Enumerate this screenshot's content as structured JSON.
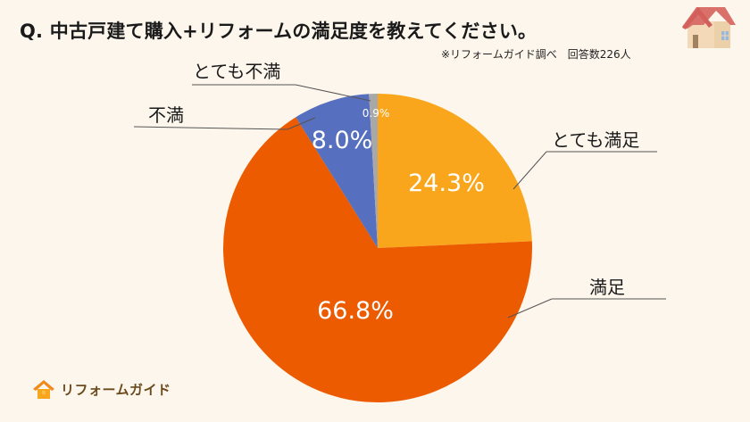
{
  "header": {
    "title": "Q.  中古戸建て購入+リフォームの満足度を教えてください。",
    "source": "※リフォームガイド調べ　回答数226人",
    "house_icon": "house-icon"
  },
  "logo": {
    "icon": "house-logo-icon",
    "text": "リフォームガイド"
  },
  "colors": {
    "background": "#fdf6ec",
    "very_satisfied": "#f9a61c",
    "satisfied": "#ec5b00",
    "dissatisfied": "#5670bf",
    "very_dissatisfied": "#a8a8a8",
    "leader_line": "#555555"
  },
  "chart_data": {
    "type": "pie",
    "title": "中古戸建て購入+リフォームの満足度を教えてください。",
    "subtitle": "※リフォームガイド調べ　回答数226人",
    "start_angle": "12 o'clock, clockwise",
    "categories": [
      "とても満足",
      "満足",
      "不満",
      "とても不満"
    ],
    "values": [
      24.3,
      66.8,
      8.0,
      0.9
    ],
    "value_labels": [
      "24.3%",
      "66.8%",
      "8.0%",
      "0.9%"
    ],
    "colors": [
      "#f9a61c",
      "#ec5b00",
      "#5670bf",
      "#a8a8a8"
    ],
    "respondents": 226
  },
  "labels": {
    "very_satisfied": "とても満足",
    "satisfied": "満足",
    "dissatisfied": "不満",
    "very_dissatisfied": "とても不満"
  }
}
